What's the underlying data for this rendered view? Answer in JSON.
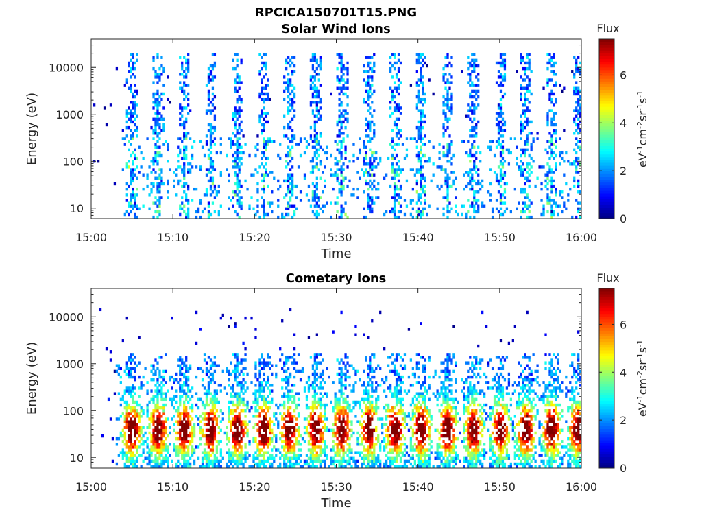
{
  "figure_title": "RPCICA150701T15.PNG",
  "chart_data": [
    {
      "type": "heatmap",
      "title": "Solar Wind Ions",
      "xlabel": "Time",
      "ylabel": "Energy (eV)",
      "x_ticks": [
        "15:00",
        "15:10",
        "15:20",
        "15:30",
        "15:40",
        "15:50",
        "16:00"
      ],
      "xlim": [
        "15:00",
        "16:00"
      ],
      "y_scale": "log",
      "y_ticks": [
        "10",
        "100",
        "1000",
        "10000"
      ],
      "ylim": [
        6,
        40000
      ],
      "colorbar": {
        "title": "Flux",
        "label": "eV-1cm-2sr-1s-1",
        "label_parts": [
          "eV",
          "-1",
          "cm",
          "-2",
          "sr",
          "-1",
          "s",
          "-1"
        ],
        "ticks": [
          "0",
          "2",
          "4",
          "6"
        ],
        "range": [
          0,
          7.5
        ],
        "colormap": "jet"
      },
      "pattern": "sweeps",
      "burst_minutes": [
        5,
        8.2,
        11.4,
        14.6,
        17.9,
        21.1,
        24.3,
        27.5,
        30.7,
        34,
        37.2,
        40.4,
        43.6,
        46.8,
        50.1,
        53.2,
        56.4,
        59.6
      ],
      "typical_flux": 1.5,
      "peak_flux": 3
    },
    {
      "type": "heatmap",
      "title": "Cometary Ions",
      "xlabel": "Time",
      "ylabel": "Energy (eV)",
      "x_ticks": [
        "15:00",
        "15:10",
        "15:20",
        "15:30",
        "15:40",
        "15:50",
        "16:00"
      ],
      "xlim": [
        "15:00",
        "16:00"
      ],
      "y_scale": "log",
      "y_ticks": [
        "10",
        "100",
        "1000",
        "10000"
      ],
      "ylim": [
        6,
        40000
      ],
      "colorbar": {
        "title": "Flux",
        "label": "eV-1cm-2sr-1s-1",
        "label_parts": [
          "eV",
          "-1",
          "cm",
          "-2",
          "sr",
          "-1",
          "s",
          "-1"
        ],
        "ticks": [
          "0",
          "2",
          "4",
          "6"
        ],
        "range": [
          0,
          7.5
        ],
        "colormap": "jet"
      },
      "pattern": "bursts",
      "burst_minutes": [
        5,
        8.2,
        11.4,
        14.6,
        17.9,
        21.1,
        24.3,
        27.5,
        30.7,
        34,
        37.2,
        40.4,
        43.6,
        46.8,
        50.1,
        53.2,
        56.4,
        59.6
      ],
      "peak_energy_eV": 40,
      "peak_flux": 6.5
    }
  ]
}
